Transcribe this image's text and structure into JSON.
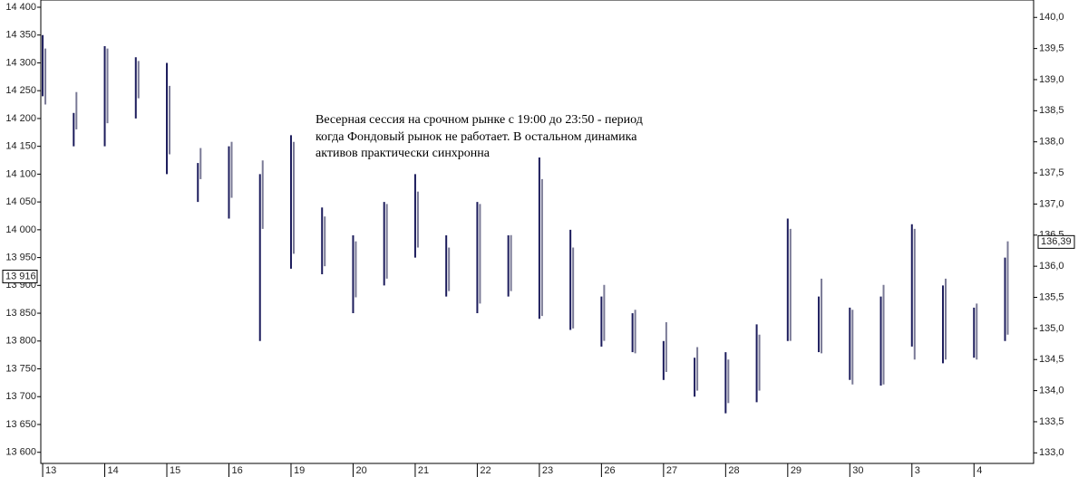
{
  "chart_data": {
    "type": "range",
    "annotation": [
      "Весерная сессия на срочном рынке с 19:00 до 23:50 - период",
      "когда Фондовый рынок не работает. В остальном динамика",
      "активов практически синхронна"
    ],
    "x": [
      0,
      0.5,
      1,
      1.5,
      2,
      2.5,
      3,
      3.5,
      4,
      4.5,
      5,
      5.5,
      6,
      6.5,
      7,
      7.5,
      8,
      8.5,
      9,
      9.5,
      10,
      10.5,
      11,
      11.5,
      12,
      12.5,
      13,
      13.5,
      14,
      14.5,
      15,
      15.5
    ],
    "xlim": [
      -0.03,
      15.96
    ],
    "xticks": [
      {
        "value": 0,
        "label": "13"
      },
      {
        "value": 1,
        "label": "14"
      },
      {
        "value": 2,
        "label": "15"
      },
      {
        "value": 3,
        "label": "16"
      },
      {
        "value": 4,
        "label": "19"
      },
      {
        "value": 5,
        "label": "20"
      },
      {
        "value": 6,
        "label": "21"
      },
      {
        "value": 7,
        "label": "22"
      },
      {
        "value": 8,
        "label": "23"
      },
      {
        "value": 9,
        "label": "26"
      },
      {
        "value": 10,
        "label": "27"
      },
      {
        "value": 11,
        "label": "28"
      },
      {
        "value": 12,
        "label": "29"
      },
      {
        "value": 13,
        "label": "30"
      },
      {
        "value": 14,
        "label": "3"
      },
      {
        "value": 15,
        "label": "4"
      }
    ],
    "ylim": [
      13580,
      14413
    ],
    "yticks": [
      {
        "value": 13600,
        "label": "13 600"
      },
      {
        "value": 13650,
        "label": "13 650"
      },
      {
        "value": 13700,
        "label": "13 700"
      },
      {
        "value": 13750,
        "label": "13 750"
      },
      {
        "value": 13800,
        "label": "13 800"
      },
      {
        "value": 13850,
        "label": "13 850"
      },
      {
        "value": 13900,
        "label": "13 900"
      },
      {
        "value": 13950,
        "label": "13 950"
      },
      {
        "value": 14000,
        "label": "14 000"
      },
      {
        "value": 14050,
        "label": "14 050"
      },
      {
        "value": 14100,
        "label": "14 100"
      },
      {
        "value": 14150,
        "label": "14 150"
      },
      {
        "value": 14200,
        "label": "14 200"
      },
      {
        "value": 14250,
        "label": "14 250"
      },
      {
        "value": 14300,
        "label": "14 300"
      },
      {
        "value": 14350,
        "label": "14 350"
      },
      {
        "value": 14400,
        "label": "14 400"
      }
    ],
    "y2lim": [
      132.83,
      140.28
    ],
    "y2ticks": [
      {
        "value": 133,
        "label": "133,0"
      },
      {
        "value": 133.5,
        "label": "133,5"
      },
      {
        "value": 134,
        "label": "134,0"
      },
      {
        "value": 134.5,
        "label": "134,5"
      },
      {
        "value": 135,
        "label": "135,0"
      },
      {
        "value": 135.5,
        "label": "135,5"
      },
      {
        "value": 136,
        "label": "136,0"
      },
      {
        "value": 136.5,
        "label": "136,5"
      },
      {
        "value": 137,
        "label": "137,0"
      },
      {
        "value": 137.5,
        "label": "137,5"
      },
      {
        "value": 138,
        "label": "138,0"
      },
      {
        "value": 138.5,
        "label": "138,5"
      },
      {
        "value": 139,
        "label": "139,0"
      },
      {
        "value": 139.5,
        "label": "139,5"
      },
      {
        "value": 140,
        "label": "140,0"
      }
    ],
    "last": {
      "value": 13916,
      "label": "13 916"
    },
    "last2": {
      "value": 136.39,
      "label": "136,39"
    },
    "series": [
      {
        "color": "#1c1c5c",
        "low": [
          14240,
          14150,
          14150,
          14200,
          14100,
          14050,
          14020,
          13800,
          13930,
          13920,
          13850,
          13900,
          13950,
          13880,
          13850,
          13880,
          13840,
          13820,
          13790,
          13780,
          13730,
          13700,
          13670,
          13690,
          13800,
          13780,
          13730,
          13720,
          13790,
          13760,
          13770,
          13800
        ],
        "high": [
          14350,
          14210,
          14330,
          14310,
          14300,
          14120,
          14150,
          14100,
          14170,
          14040,
          13990,
          14050,
          14100,
          13990,
          14050,
          13990,
          14130,
          14000,
          13880,
          13850,
          13800,
          13770,
          13780,
          13830,
          14020,
          13880,
          13860,
          13880,
          14010,
          13900,
          13860,
          13950
        ]
      },
      {
        "color": "#7a7a96",
        "axis": "y2",
        "low": [
          138.6,
          138.2,
          138.3,
          138.7,
          137.8,
          137.4,
          137.1,
          136.6,
          136.2,
          136.0,
          135.5,
          135.8,
          136.3,
          135.6,
          135.4,
          135.6,
          135.2,
          135.0,
          134.8,
          134.6,
          134.3,
          134.0,
          133.8,
          134.0,
          134.8,
          134.6,
          134.1,
          134.1,
          134.5,
          134.5,
          134.5,
          134.9
        ],
        "high": [
          139.5,
          138.8,
          139.5,
          139.3,
          138.9,
          137.9,
          138.0,
          137.7,
          138.0,
          136.8,
          136.4,
          137.0,
          137.2,
          136.3,
          137.0,
          136.5,
          137.4,
          136.3,
          135.7,
          135.3,
          135.1,
          134.7,
          134.5,
          134.9,
          136.6,
          135.8,
          135.3,
          135.7,
          136.6,
          135.8,
          135.4,
          136.4
        ]
      }
    ]
  }
}
